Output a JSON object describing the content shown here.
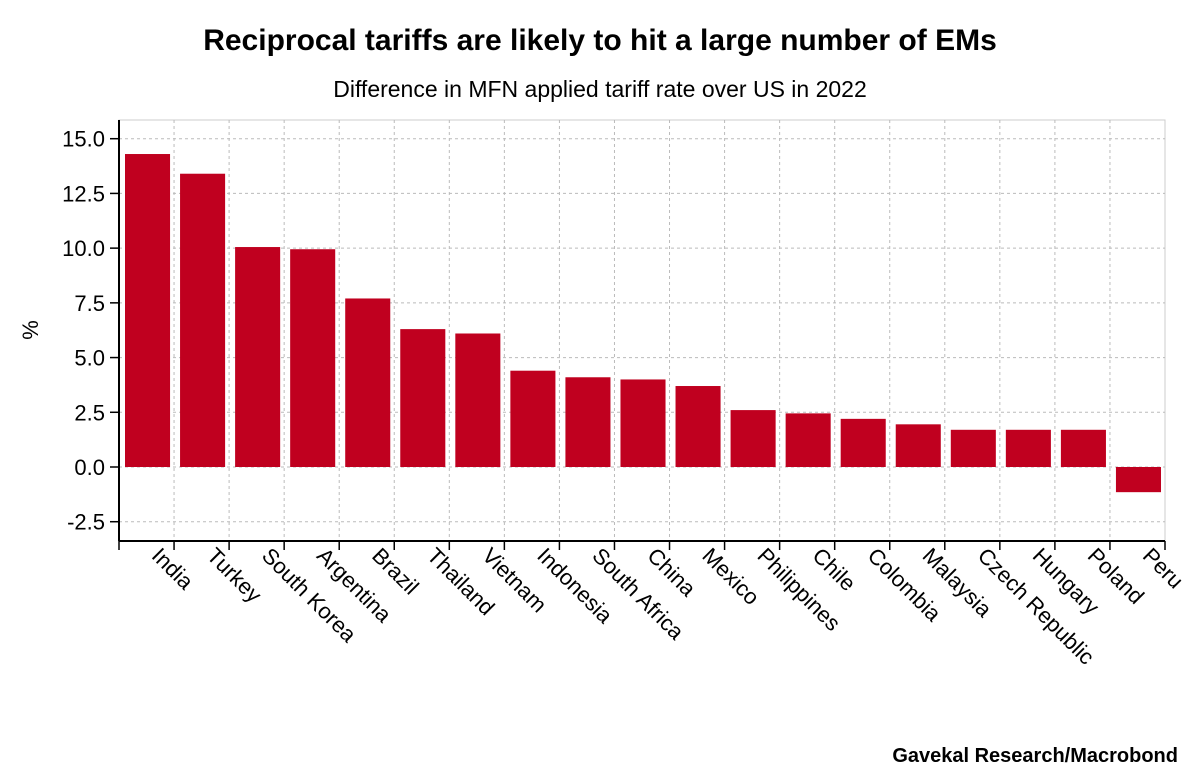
{
  "chart_data": {
    "type": "bar",
    "title": "Reciprocal tariffs are likely to hit a large number of EMs",
    "subtitle": "Difference in MFN applied tariff rate over US in 2022",
    "xlabel": "",
    "ylabel": "%",
    "ylim": [
      -3.5,
      16.0
    ],
    "yticks": [
      "15.0",
      "12.5",
      "10.0",
      "7.5",
      "5.0",
      "2.5",
      "0.0",
      "-2.5"
    ],
    "grid": true,
    "bar_color": "#c0001f",
    "categories": [
      "India",
      "Turkey",
      "South Korea",
      "Argentina",
      "Brazil",
      "Thailand",
      "Vietnam",
      "Indonesia",
      "South Africa",
      "China",
      "Mexico",
      "Philippines",
      "Chile",
      "Colombia",
      "Malaysia",
      "Czech Republic",
      "Hungary",
      "Poland",
      "Peru"
    ],
    "values": [
      14.3,
      13.4,
      10.05,
      9.95,
      7.7,
      6.3,
      6.1,
      4.4,
      4.1,
      4.0,
      3.7,
      2.6,
      2.45,
      2.2,
      1.95,
      1.7,
      1.7,
      1.7,
      -1.15
    ],
    "source": "Gavekal Research/Macrobond"
  }
}
